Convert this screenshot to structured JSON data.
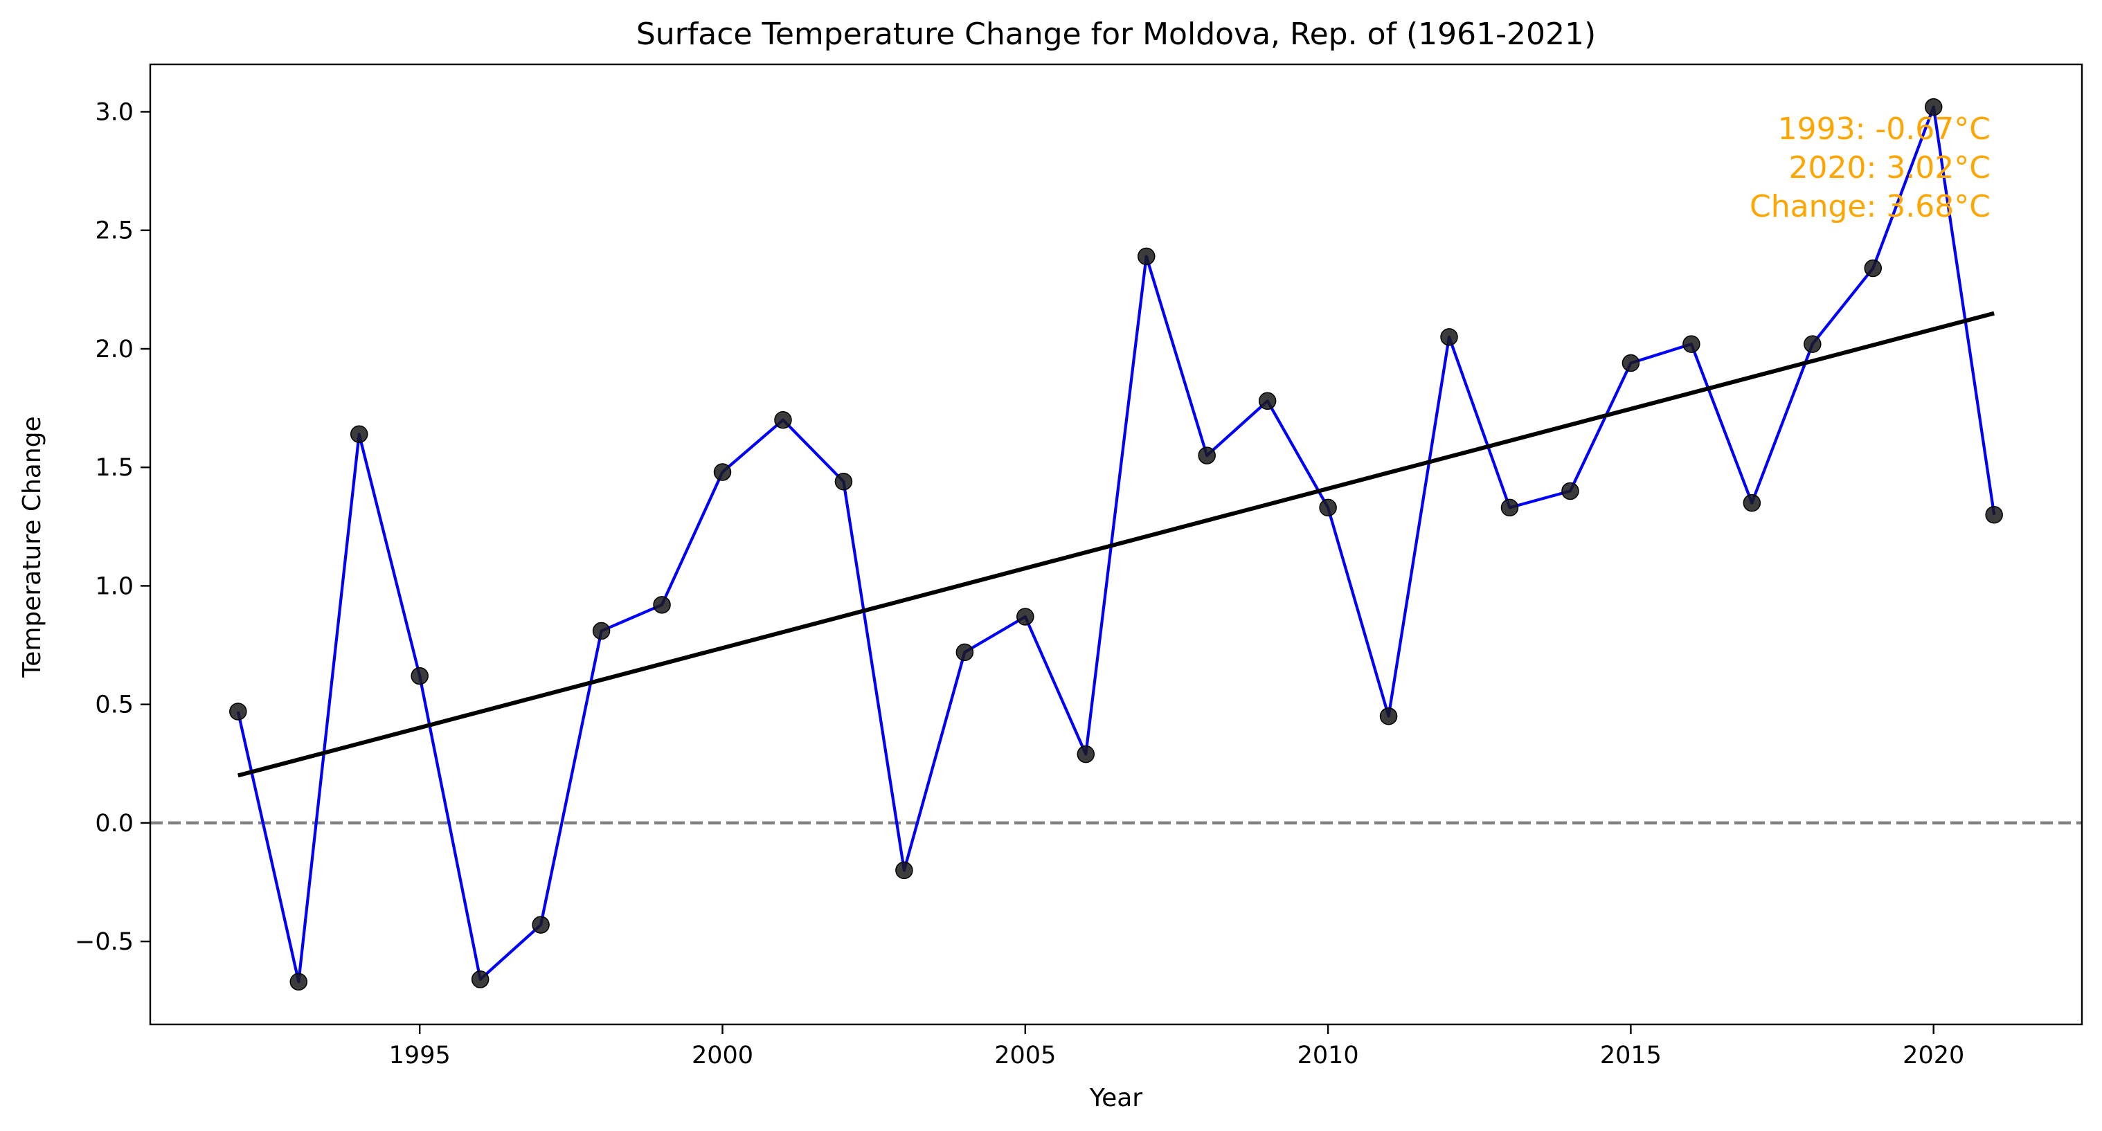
{
  "chart_data": {
    "type": "line",
    "title": "Surface Temperature Change for Moldova, Rep. of (1961-2021)",
    "xlabel": "Year",
    "ylabel": "Temperature Change",
    "xlim": [
      1990.55,
      2022.45
    ],
    "ylim": [
      -0.85,
      3.2
    ],
    "x_ticks": [
      1995,
      2000,
      2005,
      2010,
      2015,
      2020
    ],
    "y_ticks": [
      -0.5,
      0.0,
      0.5,
      1.0,
      1.5,
      2.0,
      2.5,
      3.0
    ],
    "x_tick_labels": [
      "1995",
      "2000",
      "2005",
      "2010",
      "2015",
      "2020"
    ],
    "y_tick_labels": [
      "−0.5",
      "0.0",
      "0.5",
      "1.0",
      "1.5",
      "2.0",
      "2.5",
      "3.0"
    ],
    "grid": false,
    "colors": {
      "line": "#0000ff",
      "marker": "#1a1a1a",
      "trend": "#000000",
      "baseline": "#808080",
      "annotation": "#ffa500"
    },
    "series": [
      {
        "x": [
          1992,
          1993,
          1994,
          1995,
          1996,
          1997,
          1998,
          1999,
          2000,
          2001,
          2002,
          2003,
          2004,
          2005,
          2006,
          2007,
          2008,
          2009,
          2010,
          2011,
          2012,
          2013,
          2014,
          2015,
          2016,
          2017,
          2018,
          2019,
          2020,
          2021
        ],
        "values": [
          0.47,
          -0.67,
          1.64,
          0.62,
          -0.66,
          -0.43,
          0.81,
          0.92,
          1.48,
          1.7,
          1.44,
          -0.2,
          0.72,
          0.87,
          0.29,
          2.39,
          1.55,
          1.78,
          1.33,
          0.45,
          2.05,
          1.33,
          1.4,
          1.94,
          2.02,
          1.35,
          2.02,
          2.34,
          3.02,
          1.3
        ]
      }
    ],
    "trend_line": {
      "x": [
        1992,
        2021
      ],
      "y": [
        0.2,
        2.15
      ]
    },
    "baseline": {
      "y": 0.0,
      "style": "dashed"
    },
    "annotation": {
      "lines": [
        "1993: -0.67°C",
        "2020: 3.02°C",
        "Change: 3.68°C"
      ],
      "placement": "top-right"
    }
  }
}
